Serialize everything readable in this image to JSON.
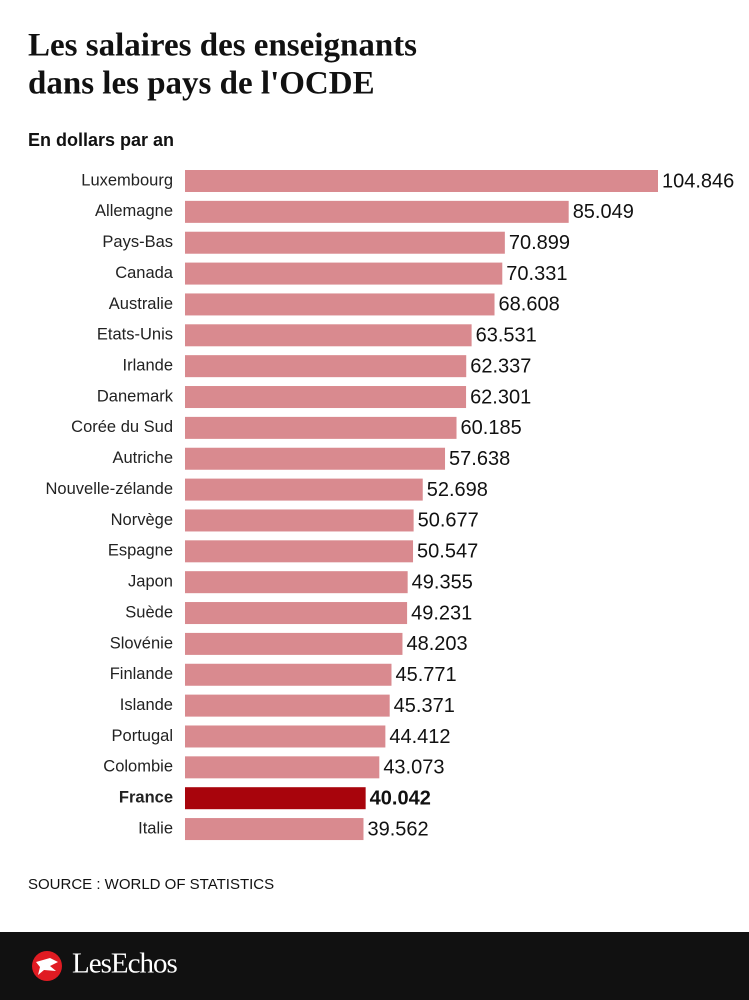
{
  "chart_data": {
    "type": "bar",
    "orientation": "horizontal",
    "title": [
      "Les salaires des enseignants",
      "dans les pays de l'OCDE"
    ],
    "subtitle": "En dollars par an",
    "categories": [
      "Luxembourg",
      "Allemagne",
      "Pays-Bas",
      "Canada",
      "Australie",
      "Etats-Unis",
      "Irlande",
      "Danemark",
      "Corée du Sud",
      "Autriche",
      "Nouvelle-zélande",
      "Norvège",
      "Espagne",
      "Japon",
      "Suède",
      "Slovénie",
      "Finlande",
      "Islande",
      "Portugal",
      "Colombie",
      "France",
      "Italie"
    ],
    "values": [
      104846,
      85049,
      70899,
      70331,
      68608,
      63531,
      62337,
      62301,
      60185,
      57638,
      52698,
      50677,
      50547,
      49355,
      49231,
      48203,
      45771,
      45371,
      44412,
      43073,
      40042,
      39562
    ],
    "value_labels": [
      "104.846",
      "85.049",
      "70.899",
      "70.331",
      "68.608",
      "63.531",
      "62.337",
      "62.301",
      "60.185",
      "57.638",
      "52.698",
      "50.677",
      "50.547",
      "49.355",
      "49.231",
      "48.203",
      "45.771",
      "45.371",
      "44.412",
      "43.073",
      "40.042",
      "39.562"
    ],
    "color": "#d98a8f",
    "colors": [
      "#d98a8f",
      "#d98a8f",
      "#d98a8f",
      "#d98a8f",
      "#d98a8f",
      "#d98a8f",
      "#d98a8f",
      "#d98a8f",
      "#d98a8f",
      "#d98a8f",
      "#d98a8f",
      "#d98a8f",
      "#d98a8f",
      "#d98a8f",
      "#d98a8f",
      "#d98a8f",
      "#d98a8f",
      "#d98a8f",
      "#d98a8f",
      "#d98a8f",
      "#a8040c",
      "#d98a8f"
    ],
    "source": "SOURCE : WORLD OF STATISTICS",
    "brand": "LesEchos"
  }
}
